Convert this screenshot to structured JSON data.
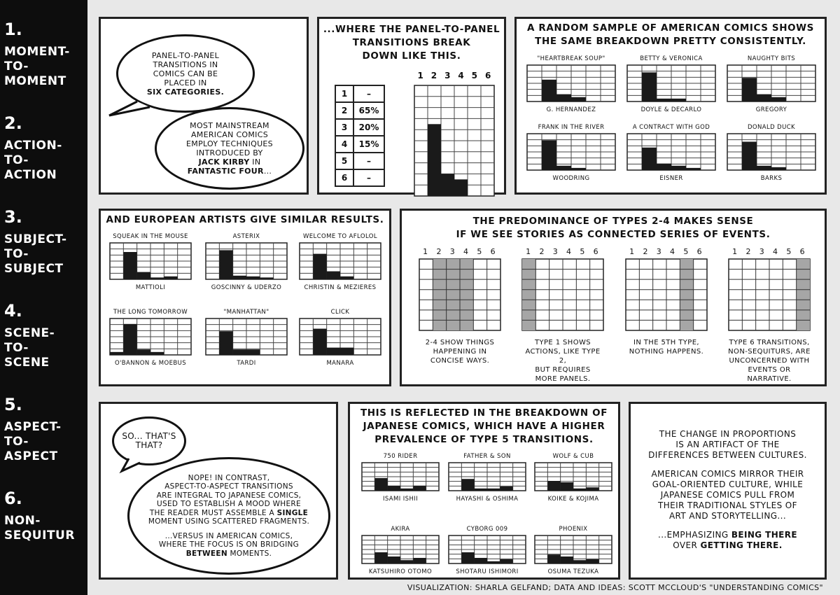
{
  "sidebar": [
    {
      "num": "1.",
      "name": [
        "MOMENT-",
        "TO-",
        "MOMENT"
      ]
    },
    {
      "num": "2.",
      "name": [
        "ACTION-",
        "TO-",
        "ACTION"
      ]
    },
    {
      "num": "3.",
      "name": [
        "SUBJECT-",
        "TO-",
        "SUBJECT"
      ]
    },
    {
      "num": "4.",
      "name": [
        "SCENE-",
        "TO-",
        "SCENE"
      ]
    },
    {
      "num": "5.",
      "name": [
        "ASPECT-",
        "TO-",
        "ASPECT"
      ]
    },
    {
      "num": "6.",
      "name": [
        "NON-",
        "SEQUITUR"
      ]
    }
  ],
  "intro": {
    "bubble1": [
      "PANEL-TO-PANEL",
      "TRANSITIONS IN",
      "COMICS CAN BE",
      "PLACED IN"
    ],
    "bubble1_bold": "SIX CATEGORIES.",
    "bubble2": [
      "MOST MAINSTREAM",
      "AMERICAN COMICS",
      "EMPLOY TECHNIQUES",
      "INTRODUCED BY"
    ],
    "bubble2_bold1": "JACK KIRBY",
    "bubble2_in": "IN",
    "bubble2_bold2": "FANTASTIC FOUR",
    "bubble2_end": "..."
  },
  "breakdown": {
    "title": [
      "...WHERE THE PANEL-TO-PANEL",
      "TRANSITIONS BREAK",
      "DOWN LIKE THIS."
    ],
    "column_numbers": [
      "1",
      "2",
      "3",
      "4",
      "5",
      "6"
    ],
    "rows": [
      {
        "type": "1",
        "value": "–"
      },
      {
        "type": "2",
        "value": "65%"
      },
      {
        "type": "3",
        "value": "20%"
      },
      {
        "type": "4",
        "value": "15%"
      },
      {
        "type": "5",
        "value": "–"
      },
      {
        "type": "6",
        "value": "–"
      }
    ]
  },
  "american": {
    "title_pre": "A RANDOM SAMPLE OF",
    "title_bold": "AMERICAN",
    "title_post": "COMICS SHOWS",
    "title2": "THE SAME BREAKDOWN PRETTY CONSISTENTLY."
  },
  "european": {
    "title_pre": "AND",
    "title_bold": "EUROPEAN",
    "title_post": "ARTISTS GIVE SIMILAR RESULTS."
  },
  "types": {
    "title": [
      "THE PREDOMINANCE OF TYPES 2-4 MAKES SENSE",
      "IF WE SEE STORIES AS CONNECTED SERIES OF EVENTS."
    ],
    "column_numbers": [
      "1",
      "2",
      "3",
      "4",
      "5",
      "6"
    ],
    "captions": [
      [
        "2-4 SHOW THINGS",
        "HAPPENING IN",
        "CONCISE WAYS."
      ],
      [
        "TYPE 1 SHOWS",
        "ACTIONS, LIKE TYPE 2,",
        "BUT REQUIRES",
        "MORE PANELS."
      ],
      [
        "IN THE 5TH TYPE,",
        "NOTHING HAPPENS."
      ],
      [
        "TYPE 6 TRANSITIONS,",
        "NON-SEQUITURS, ARE",
        "UNCONCERNED WITH",
        "EVENTS OR NARRATIVE."
      ]
    ]
  },
  "dialog": {
    "bubble1": [
      "SO... THAT'S",
      "THAT?"
    ],
    "bubble2": [
      "NOPE! IN CONTRAST,",
      "ASPECT-TO-ASPECT TRANSITIONS",
      "ARE INTEGRAL TO JAPANESE COMICS,",
      "USED TO ESTABLISH A MOOD WHERE"
    ],
    "bubble2_l5_pre": "THE READER MUST ASSEMBLE A",
    "bubble2_l5_bold": "SINGLE",
    "bubble2_l6": "MOMENT USING SCATTERED FRAGMENTS.",
    "bubble2_l7": "...VERSUS IN AMERICAN COMICS,",
    "bubble2_l8": "WHERE THE FOCUS IS ON BRIDGING",
    "bubble2_l9_bold": "BETWEEN",
    "bubble2_l9_post": "MOMENTS."
  },
  "japanese": {
    "title": [
      "THIS IS REFLECTED IN THE BREAKDOWN OF",
      "JAPANESE COMICS, WHICH HAVE A HIGHER",
      "PREVALENCE OF TYPE 5 TRANSITIONS."
    ]
  },
  "conclusion": {
    "p1": [
      "THE CHANGE IN PROPORTIONS",
      "IS AN ARTIFACT OF THE",
      "DIFFERENCES BETWEEN CULTURES."
    ],
    "p2": [
      "AMERICAN COMICS MIRROR THEIR",
      "GOAL-ORIENTED CULTURE, WHILE",
      "JAPANESE COMICS PULL FROM",
      "THEIR TRADITIONAL STYLES OF",
      "ART AND STORYTELLING..."
    ],
    "p3_l1_pre": "...EMPHASIZING",
    "p3_l1_bold": "BEING THERE",
    "p3_l2_pre": "OVER",
    "p3_l2_bold": "GETTING THERE."
  },
  "footer": "VISUALIZATION: SHARLA GELFAND; DATA AND IDEAS: SCOTT MCCLOUD'S \"UNDERSTANDING COMICS\"",
  "chart_data": [
    {
      "type": "bar",
      "group": "overview",
      "categories": [
        "1",
        "2",
        "3",
        "4",
        "5",
        "6"
      ],
      "values": [
        0,
        65,
        20,
        15,
        0,
        0
      ],
      "ylim": [
        0,
        100
      ]
    },
    {
      "type": "bar",
      "group": "american",
      "title": "\"HEARTBREAK SOUP\"",
      "subtitle": "G. HERNANDEZ",
      "categories": [
        "1",
        "2",
        "3",
        "4",
        "5",
        "6"
      ],
      "values": [
        0,
        60,
        20,
        12,
        0,
        0
      ]
    },
    {
      "type": "bar",
      "group": "american",
      "title": "BETTY & VERONICA",
      "subtitle": "DOYLE & DECARLO",
      "categories": [
        "1",
        "2",
        "3",
        "4",
        "5",
        "6"
      ],
      "values": [
        0,
        80,
        8,
        8,
        0,
        0
      ]
    },
    {
      "type": "bar",
      "group": "american",
      "title": "NAUGHTY BITS",
      "subtitle": "GREGORY",
      "categories": [
        "1",
        "2",
        "3",
        "4",
        "5",
        "6"
      ],
      "values": [
        0,
        65,
        20,
        12,
        0,
        0
      ]
    },
    {
      "type": "bar",
      "group": "american",
      "title": "FRANK IN THE RIVER",
      "subtitle": "WOODRING",
      "categories": [
        "1",
        "2",
        "3",
        "4",
        "5",
        "6"
      ],
      "values": [
        0,
        82,
        12,
        6,
        0,
        0
      ]
    },
    {
      "type": "bar",
      "group": "american",
      "title": "A CONTRACT WITH GOD",
      "subtitle": "EISNER",
      "categories": [
        "1",
        "2",
        "3",
        "4",
        "5",
        "6"
      ],
      "values": [
        0,
        62,
        18,
        12,
        6,
        0
      ]
    },
    {
      "type": "bar",
      "group": "american",
      "title": "DONALD DUCK",
      "subtitle": "BARKS",
      "categories": [
        "1",
        "2",
        "3",
        "4",
        "5",
        "6"
      ],
      "values": [
        0,
        78,
        12,
        8,
        0,
        0
      ]
    },
    {
      "type": "bar",
      "group": "european",
      "title": "SQUEAK IN THE MOUSE",
      "subtitle": "MATTIOLI",
      "categories": [
        "1",
        "2",
        "3",
        "4",
        "5",
        "6"
      ],
      "values": [
        0,
        75,
        20,
        5,
        8,
        0
      ]
    },
    {
      "type": "bar",
      "group": "european",
      "title": "ASTERIX",
      "subtitle": "GOSCINNY & UDERZO",
      "categories": [
        "1",
        "2",
        "3",
        "4",
        "5",
        "6"
      ],
      "values": [
        0,
        80,
        10,
        8,
        5,
        0
      ]
    },
    {
      "type": "bar",
      "group": "european",
      "title": "WELCOME TO AFLOLOL",
      "subtitle": "CHRISTIN & MEZIERES",
      "categories": [
        "1",
        "2",
        "3",
        "4",
        "5",
        "6"
      ],
      "values": [
        0,
        70,
        22,
        8,
        0,
        0
      ]
    },
    {
      "type": "bar",
      "group": "european",
      "title": "THE LONG TOMORROW",
      "subtitle": "O'BANNON & MOEBUS",
      "categories": [
        "1",
        "2",
        "3",
        "4",
        "5",
        "6"
      ],
      "values": [
        8,
        85,
        15,
        8,
        0,
        0
      ]
    },
    {
      "type": "bar",
      "group": "european",
      "title": "\"MANHATTAN\"",
      "subtitle": "TARDI",
      "categories": [
        "1",
        "2",
        "3",
        "4",
        "5",
        "6"
      ],
      "values": [
        0,
        65,
        15,
        15,
        0,
        0
      ]
    },
    {
      "type": "bar",
      "group": "european",
      "title": "CLICK",
      "subtitle": "MANARA",
      "categories": [
        "1",
        "2",
        "3",
        "4",
        "5",
        "6"
      ],
      "values": [
        0,
        72,
        20,
        20,
        0,
        0
      ]
    },
    {
      "type": "bar",
      "group": "japanese",
      "title": "750 RIDER",
      "subtitle": "ISAMI ISHII",
      "categories": [
        "1",
        "2",
        "3",
        "4",
        "5",
        "6"
      ],
      "values": [
        0,
        45,
        18,
        8,
        18,
        0
      ]
    },
    {
      "type": "bar",
      "group": "japanese",
      "title": "FATHER & SON",
      "subtitle": "HAYASHI & OSHIMA",
      "categories": [
        "1",
        "2",
        "3",
        "4",
        "5",
        "6"
      ],
      "values": [
        0,
        42,
        8,
        8,
        15,
        0
      ]
    },
    {
      "type": "bar",
      "group": "japanese",
      "title": "WOLF & CUB",
      "subtitle": "KOIKE & KOJIMA",
      "categories": [
        "1",
        "2",
        "3",
        "4",
        "5",
        "6"
      ],
      "values": [
        0,
        35,
        30,
        8,
        12,
        0
      ]
    },
    {
      "type": "bar",
      "group": "japanese",
      "title": "AKIRA",
      "subtitle": "KATSUHIRO OTOMO",
      "categories": [
        "1",
        "2",
        "3",
        "4",
        "5",
        "6"
      ],
      "values": [
        0,
        40,
        25,
        12,
        20,
        0
      ]
    },
    {
      "type": "bar",
      "group": "japanese",
      "title": "CYBORG 009",
      "subtitle": "SHOTARU ISHIMORI",
      "categories": [
        "1",
        "2",
        "3",
        "4",
        "5",
        "6"
      ],
      "values": [
        0,
        40,
        20,
        8,
        15,
        0
      ]
    },
    {
      "type": "bar",
      "group": "japanese",
      "title": "PHOENIX",
      "subtitle": "OSUMA TEZUKA",
      "categories": [
        "1",
        "2",
        "3",
        "4",
        "5",
        "6"
      ],
      "values": [
        0,
        32,
        25,
        12,
        15,
        0
      ]
    },
    {
      "type": "highlight-grid",
      "group": "types",
      "title": "2-4",
      "highlight_columns": [
        2,
        3,
        4
      ]
    },
    {
      "type": "highlight-grid",
      "group": "types",
      "title": "1",
      "highlight_columns": [
        1
      ]
    },
    {
      "type": "highlight-grid",
      "group": "types",
      "title": "5",
      "highlight_columns": [
        5
      ]
    },
    {
      "type": "highlight-grid",
      "group": "types",
      "title": "6",
      "highlight_columns": [
        6
      ]
    }
  ]
}
